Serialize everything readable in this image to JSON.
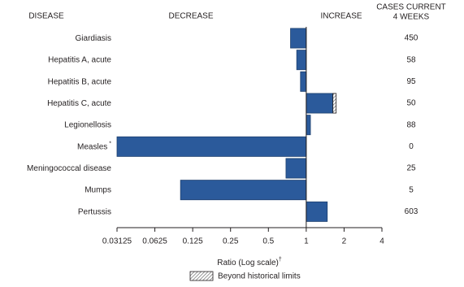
{
  "chart_data": {
    "type": "bar",
    "orientation": "horizontal",
    "log_scale": true,
    "headers": {
      "disease": "DISEASE",
      "decrease": "DECREASE",
      "increase": "INCREASE",
      "cases": [
        "CASES CURRENT",
        "4 WEEKS"
      ]
    },
    "categories": [
      "Giardiasis",
      "Hepatitis A, acute",
      "Hepatitis B, acute",
      "Hepatitis C, acute",
      "Legionellosis",
      "Measles",
      "Meningococcal disease",
      "Mumps",
      "Pertussis"
    ],
    "footnote_marks": [
      null,
      null,
      null,
      null,
      null,
      "*",
      null,
      null,
      null
    ],
    "values": [
      0.75,
      0.84,
      0.9,
      1.73,
      1.08,
      0.03125,
      0.69,
      0.1,
      1.47
    ],
    "historical_limits": [
      null,
      null,
      null,
      1.63,
      null,
      null,
      null,
      null,
      null
    ],
    "cases": [
      450,
      58,
      95,
      50,
      88,
      0,
      25,
      5,
      603
    ],
    "color": "#2b5a9b",
    "xlim": [
      0.03125,
      4
    ],
    "xticks": [
      0.03125,
      0.0625,
      0.125,
      0.25,
      0.5,
      1,
      2,
      4
    ],
    "x_label": "Ratio (Log scale)",
    "x_label_note": "†",
    "legend": "Beyond historical limits"
  }
}
